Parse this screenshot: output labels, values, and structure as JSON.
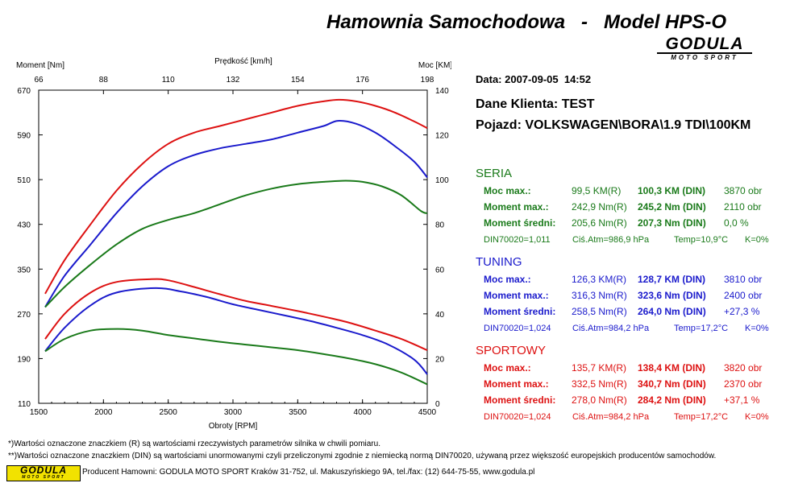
{
  "header": {
    "title": "Hamownia Samochodowa   -   Model HPS-O",
    "logo_main": "GODULA",
    "logo_sub": "MOTO SPORT"
  },
  "info": {
    "date": "Data: 2007-09-05  14:52",
    "client": "Dane Klienta: TEST",
    "vehicle": "Pojazd: VOLKSWAGEN\\BORA\\1.9 TDI\\100KM"
  },
  "sections": [
    {
      "title": "SERIA",
      "color": "#1a7a1a",
      "rows": [
        {
          "label": "Moc max.:",
          "r": "99,5 KM(R)",
          "din": "100,3 KM (DIN)",
          "extra": "3870 obr"
        },
        {
          "label": "Moment max.:",
          "r": "242,9 Nm(R)",
          "din": "245,2 Nm (DIN)",
          "extra": "2110 obr"
        },
        {
          "label": "Moment średni:",
          "r": "205,6 Nm(R)",
          "din": "207,3 Nm (DIN)",
          "extra": "0,0 %"
        }
      ],
      "din_line": {
        "din": "DIN70020=1,011",
        "atm": "Ciś.Atm=986,9 hPa",
        "temp": "Temp=10,9°C",
        "k": "K=0%"
      }
    },
    {
      "title": "TUNING",
      "color": "#1a1acc",
      "rows": [
        {
          "label": "Moc max.:",
          "r": "126,3 KM(R)",
          "din": "128,7 KM (DIN)",
          "extra": "3810 obr"
        },
        {
          "label": "Moment max.:",
          "r": "316,3 Nm(R)",
          "din": "323,6 Nm (DIN)",
          "extra": "2400 obr"
        },
        {
          "label": "Moment średni:",
          "r": "258,5 Nm(R)",
          "din": "264,0 Nm (DIN)",
          "extra": "+27,3 %"
        }
      ],
      "din_line": {
        "din": "DIN70020=1,024",
        "atm": "Ciś.Atm=984,2 hPa",
        "temp": "Temp=17,2°C",
        "k": "K=0%"
      }
    },
    {
      "title": "SPORTOWY",
      "color": "#dd1111",
      "rows": [
        {
          "label": "Moc max.:",
          "r": "135,7 KM(R)",
          "din": "138,4 KM (DIN)",
          "extra": "3820 obr"
        },
        {
          "label": "Moment max.:",
          "r": "332,5 Nm(R)",
          "din": "340,7 Nm (DIN)",
          "extra": "2370 obr"
        },
        {
          "label": "Moment średni:",
          "r": "278,0 Nm(R)",
          "din": "284,2 Nm (DIN)",
          "extra": "+37,1 %"
        }
      ],
      "din_line": {
        "din": "DIN70020=1,024",
        "atm": "Ciś.Atm=984,2 hPa",
        "temp": "Temp=17,2°C",
        "k": "K=0%"
      }
    }
  ],
  "footnotes": [
    "*)Wartości oznaczone znaczkiem (R) są wartościami rzeczywistych parametrów silnika w chwili pomiaru.",
    "**)Wartości oznaczone znaczkiem (DIN) są wartościami unormowanymi czyli przeliczonymi zgodnie z niemiecką normą DIN70020, używaną przez większość europejskich producentów samochodów."
  ],
  "footer": {
    "logo_main": "GODULA",
    "logo_sub": "MOTO SPORT",
    "text": "Producent Hamowni: GODULA MOTO SPORT Kraków 31-752, ul. Makuszyńskiego 9A, tel./fax: (12) 644-75-55, www.godula.pl"
  },
  "chart_data": {
    "type": "line",
    "xlabel": "Obroty [RPM]",
    "xlim": [
      1500,
      4500
    ],
    "x_ticks": [
      1500,
      2000,
      2500,
      3000,
      3500,
      4000,
      4500
    ],
    "top_axis_label": "Prędkość [km/h]",
    "top_ticks": [
      66,
      88,
      110,
      132,
      154,
      176,
      198
    ],
    "ylabel_left": "Moment [Nm]",
    "ylim_left": [
      110,
      670
    ],
    "y_left_ticks": [
      110,
      190,
      270,
      350,
      430,
      510,
      590,
      670
    ],
    "ylabel_right": "Moc [KM]",
    "ylim_right": [
      0,
      140
    ],
    "y_right_ticks": [
      0,
      20,
      40,
      60,
      80,
      100,
      120,
      140
    ],
    "grid": false,
    "series": [
      {
        "metric": "power",
        "axis": "right",
        "color": "#dd1111",
        "x": [
          1550,
          1700,
          1900,
          2100,
          2300,
          2500,
          2700,
          2900,
          3100,
          3300,
          3500,
          3700,
          3820,
          3950,
          4100,
          4250,
          4400,
          4500
        ],
        "y": [
          49,
          64,
          80,
          95,
          107,
          116,
          121,
          124,
          127,
          130,
          133,
          135,
          135.7,
          135,
          133,
          130,
          126,
          123
        ]
      },
      {
        "metric": "power",
        "axis": "right",
        "color": "#1a1acc",
        "x": [
          1550,
          1700,
          1900,
          2100,
          2300,
          2500,
          2700,
          2900,
          3100,
          3300,
          3500,
          3700,
          3810,
          3950,
          4100,
          4250,
          4400,
          4500
        ],
        "y": [
          43,
          57,
          71,
          85,
          97,
          106,
          111,
          114,
          116,
          118,
          121,
          124,
          126.3,
          125,
          121,
          115,
          108,
          101
        ]
      },
      {
        "metric": "power",
        "axis": "right",
        "color": "#1a7a1a",
        "x": [
          1550,
          1700,
          1900,
          2100,
          2300,
          2500,
          2700,
          2900,
          3100,
          3300,
          3500,
          3700,
          3870,
          4000,
          4150,
          4300,
          4450,
          4500
        ],
        "y": [
          43,
          52,
          62,
          71,
          78,
          82,
          85,
          89,
          93,
          96,
          98,
          99,
          99.5,
          99,
          97,
          93,
          86,
          85
        ]
      },
      {
        "metric": "torque",
        "axis": "left",
        "color": "#dd1111",
        "x": [
          1550,
          1700,
          1900,
          2100,
          2370,
          2500,
          2700,
          2900,
          3100,
          3300,
          3500,
          3700,
          3900,
          4100,
          4300,
          4500
        ],
        "y": [
          225,
          270,
          308,
          327,
          332,
          330,
          318,
          305,
          293,
          284,
          275,
          265,
          254,
          240,
          225,
          205
        ]
      },
      {
        "metric": "torque",
        "axis": "left",
        "color": "#1a1acc",
        "x": [
          1550,
          1700,
          1900,
          2100,
          2400,
          2600,
          2800,
          3000,
          3200,
          3400,
          3600,
          3800,
          4000,
          4200,
          4400,
          4500
        ],
        "y": [
          203,
          245,
          285,
          308,
          316,
          310,
          300,
          287,
          277,
          267,
          257,
          245,
          232,
          215,
          188,
          162
        ]
      },
      {
        "metric": "torque",
        "axis": "left",
        "color": "#1a7a1a",
        "x": [
          1550,
          1700,
          1900,
          2110,
          2300,
          2500,
          2700,
          2900,
          3100,
          3300,
          3500,
          3700,
          3900,
          4100,
          4300,
          4500
        ],
        "y": [
          203,
          225,
          240,
          243,
          240,
          232,
          226,
          220,
          215,
          210,
          205,
          198,
          190,
          180,
          165,
          144
        ]
      }
    ]
  }
}
